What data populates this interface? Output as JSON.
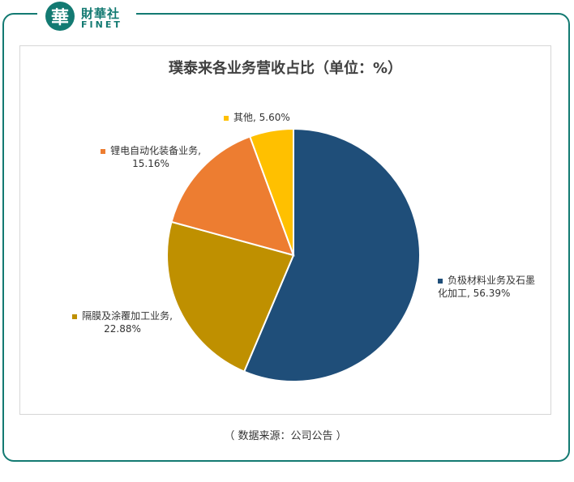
{
  "brand": {
    "logo_char": "華",
    "name_cn": "財華社",
    "name_en": "FINET",
    "color": "#137a72"
  },
  "chart_data": {
    "type": "pie",
    "title": "璞泰来各业务营收占比（单位：%）",
    "slices": [
      {
        "label": "负极材料业务及石墨化加工",
        "value": 56.39,
        "value_text": "56.39%",
        "color": "#1f4e79"
      },
      {
        "label": "隔膜及涂覆加工业务",
        "value": 22.88,
        "value_text": "22.88%",
        "color": "#bf9000"
      },
      {
        "label": "锂电自动化装备业务",
        "value": 15.16,
        "value_text": "15.16%",
        "color": "#ed7d31"
      },
      {
        "label": "其他",
        "value": 5.6,
        "value_text": "5.60%",
        "color": "#ffc000"
      }
    ]
  },
  "source": "（ 数据来源：公司公告 ）"
}
